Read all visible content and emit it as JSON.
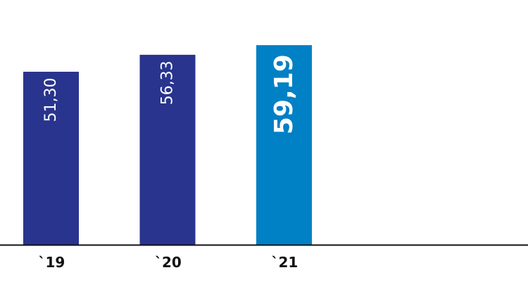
{
  "chart_data": {
    "type": "bar",
    "title": "",
    "xlabel": "",
    "ylabel": "",
    "categories": [
      "`19",
      "`20",
      "`21"
    ],
    "values": [
      51.3,
      56.33,
      59.19
    ],
    "value_labels": [
      "51,30",
      "56,33",
      "59,19"
    ],
    "ylim": [
      0,
      72
    ],
    "grid": false,
    "colors": [
      "#29348e",
      "#29348e",
      "#0080c5"
    ],
    "highlighted_index": 2
  }
}
